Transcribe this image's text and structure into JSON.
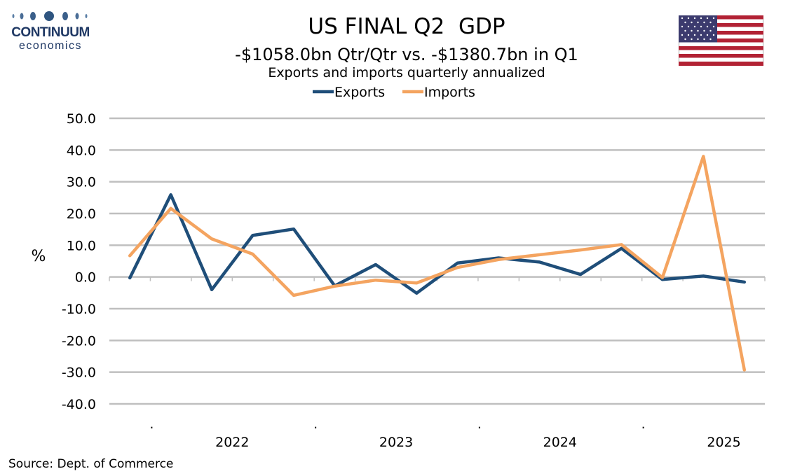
{
  "brand": {
    "name": "CONTINUUM",
    "sub": "economics"
  },
  "source": "Source: Dept. of Commerce",
  "colors": {
    "exports": "#1f4e79",
    "imports": "#f4a460",
    "grid": "#bfbfbf",
    "brand": "#1f3864"
  },
  "icons": {
    "flag": "us-flag-icon",
    "logo": "continuum-logo-icon"
  },
  "chart_data": {
    "type": "line",
    "title": "US FINAL Q2  GDP",
    "subtitle": "-$1058.0bn Qtr/Qtr vs. -$1380.7bn in Q1",
    "subtitle2": "Exports and imports quarterly annualized",
    "ylabel": "%",
    "ylim": [
      -40,
      50
    ],
    "y_ticks": [
      "50.0",
      "40.0",
      "30.0",
      "20.0",
      "10.0",
      "0.0",
      "-10.0",
      "-20.0",
      "-30.0",
      "-40.0"
    ],
    "x_labels": [
      "2022",
      "2023",
      "2024",
      "2025"
    ],
    "legend_position": "top-center",
    "grid": true,
    "series": [
      {
        "name": "Exports",
        "values": [
          -0.3,
          25.9,
          -4.0,
          13.1,
          15.1,
          -2.8,
          3.9,
          -5.1,
          4.4,
          6.0,
          4.7,
          0.8,
          9.0,
          -0.8,
          0.3,
          -1.6
        ]
      },
      {
        "name": "Imports",
        "values": [
          6.7,
          21.6,
          12.0,
          7.2,
          -5.8,
          -2.9,
          -1.0,
          -1.9,
          3.0,
          5.5,
          7.0,
          8.5,
          10.2,
          -0.2,
          38.0,
          -29.3
        ]
      }
    ]
  }
}
